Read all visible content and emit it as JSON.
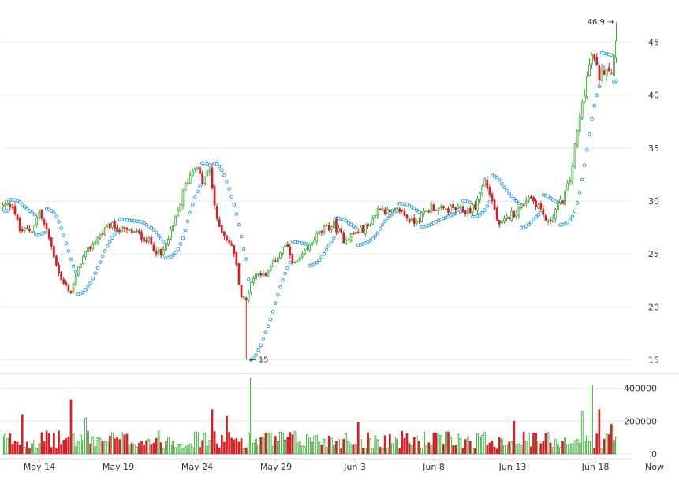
{
  "chart_data": {
    "type": "candlestick",
    "title": "",
    "price_axis": {
      "ticks": [
        15,
        20,
        25,
        30,
        35,
        40,
        45
      ],
      "tick_labels": [
        "15",
        "20",
        "25",
        "30",
        "35",
        "40",
        "45"
      ],
      "ylim": [
        14,
        47.5
      ]
    },
    "volume_axis": {
      "ticks": [
        0,
        200000,
        400000
      ],
      "tick_labels": [
        "0",
        "200000",
        "400000"
      ],
      "ylim": [
        0,
        470000
      ]
    },
    "x_axis": {
      "labels": [
        "May 14",
        "May 19",
        "May 24",
        "May 29",
        "Jun 3",
        "Jun 8",
        "Jun 13",
        "Jun 18",
        "Now"
      ]
    },
    "annotations": {
      "high_label": "46.9 →",
      "low_label": "← 15",
      "high_value": 46.9,
      "low_value": 15
    },
    "colors": {
      "up": "#35a52f",
      "down": "#d0232a",
      "sar": "#2a9fde",
      "grid": "#e8e8e8",
      "separator": "#c8c8c8",
      "axis_text": "#333333"
    },
    "keypoints": [
      [
        0,
        29.5
      ],
      [
        4,
        29.7
      ],
      [
        7,
        27.2
      ],
      [
        12,
        27.3
      ],
      [
        15,
        29.0
      ],
      [
        19,
        26.5
      ],
      [
        24,
        22.5
      ],
      [
        28,
        21.4
      ],
      [
        32,
        24.3
      ],
      [
        38,
        26.3
      ],
      [
        44,
        27.7
      ],
      [
        50,
        27.2
      ],
      [
        55,
        27.0
      ],
      [
        60,
        26.2
      ],
      [
        65,
        24.8
      ],
      [
        70,
        27.5
      ],
      [
        75,
        31.5
      ],
      [
        79,
        33.5
      ],
      [
        82,
        31.8
      ],
      [
        85,
        33.0
      ],
      [
        88,
        28.0
      ],
      [
        92,
        26.5
      ],
      [
        95,
        25.2
      ],
      [
        98,
        21.0
      ],
      [
        100,
        20.6
      ],
      [
        102,
        22.4
      ],
      [
        105,
        23.4
      ],
      [
        108,
        22.8
      ],
      [
        112,
        24.5
      ],
      [
        116,
        25.8
      ],
      [
        120,
        24.0
      ],
      [
        124,
        25.0
      ],
      [
        128,
        26.5
      ],
      [
        132,
        27.3
      ],
      [
        136,
        27.8
      ],
      [
        140,
        26.4
      ],
      [
        145,
        27.0
      ],
      [
        150,
        27.6
      ],
      [
        155,
        29.5
      ],
      [
        159,
        28.8
      ],
      [
        163,
        29.2
      ],
      [
        168,
        28.0
      ],
      [
        172,
        28.6
      ],
      [
        176,
        29.5
      ],
      [
        180,
        29.1
      ],
      [
        185,
        29.3
      ],
      [
        190,
        29.0
      ],
      [
        194,
        29.5
      ],
      [
        198,
        32.0
      ],
      [
        201,
        30.0
      ],
      [
        204,
        27.5
      ],
      [
        208,
        28.6
      ],
      [
        212,
        29.2
      ],
      [
        216,
        30.5
      ],
      [
        220,
        29.6
      ],
      [
        224,
        27.8
      ],
      [
        227,
        29.2
      ],
      [
        230,
        30.1
      ],
      [
        233,
        32.0
      ],
      [
        236,
        36.5
      ],
      [
        239,
        40.5
      ],
      [
        242,
        43.8
      ],
      [
        245,
        41.8
      ],
      [
        248,
        42.8
      ],
      [
        250,
        42.4
      ],
      [
        252,
        45.5
      ]
    ]
  }
}
